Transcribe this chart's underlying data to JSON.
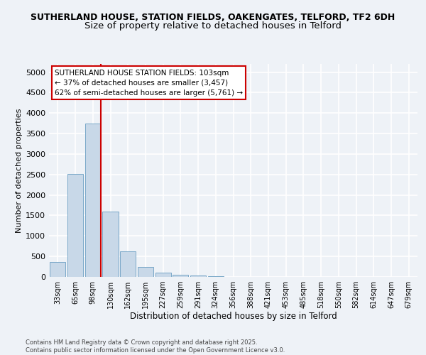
{
  "title1": "SUTHERLAND HOUSE, STATION FIELDS, OAKENGATES, TELFORD, TF2 6DH",
  "title2": "Size of property relative to detached houses in Telford",
  "xlabel": "Distribution of detached houses by size in Telford",
  "ylabel": "Number of detached properties",
  "categories": [
    "33sqm",
    "65sqm",
    "98sqm",
    "130sqm",
    "162sqm",
    "195sqm",
    "227sqm",
    "259sqm",
    "291sqm",
    "324sqm",
    "356sqm",
    "388sqm",
    "421sqm",
    "453sqm",
    "485sqm",
    "518sqm",
    "550sqm",
    "582sqm",
    "614sqm",
    "647sqm",
    "679sqm"
  ],
  "values": [
    370,
    2520,
    3750,
    1600,
    620,
    240,
    110,
    55,
    30,
    15,
    5,
    3,
    2,
    1,
    0,
    0,
    0,
    0,
    0,
    0,
    0
  ],
  "bar_color": "#c8d8e8",
  "bar_edge_color": "#7aa8c8",
  "property_line_x": 2.45,
  "annotation_text": "SUTHERLAND HOUSE STATION FIELDS: 103sqm\n← 37% of detached houses are smaller (3,457)\n62% of semi-detached houses are larger (5,761) →",
  "annotation_box_color": "#ffffff",
  "annotation_box_edge_color": "#cc0000",
  "vertical_line_color": "#cc0000",
  "ylim": [
    0,
    5200
  ],
  "yticks": [
    0,
    500,
    1000,
    1500,
    2000,
    2500,
    3000,
    3500,
    4000,
    4500,
    5000
  ],
  "footer": "Contains HM Land Registry data © Crown copyright and database right 2025.\nContains public sector information licensed under the Open Government Licence v3.0.",
  "bg_color": "#eef2f7",
  "grid_color": "#ffffff",
  "title1_fontsize": 9,
  "title2_fontsize": 9.5
}
